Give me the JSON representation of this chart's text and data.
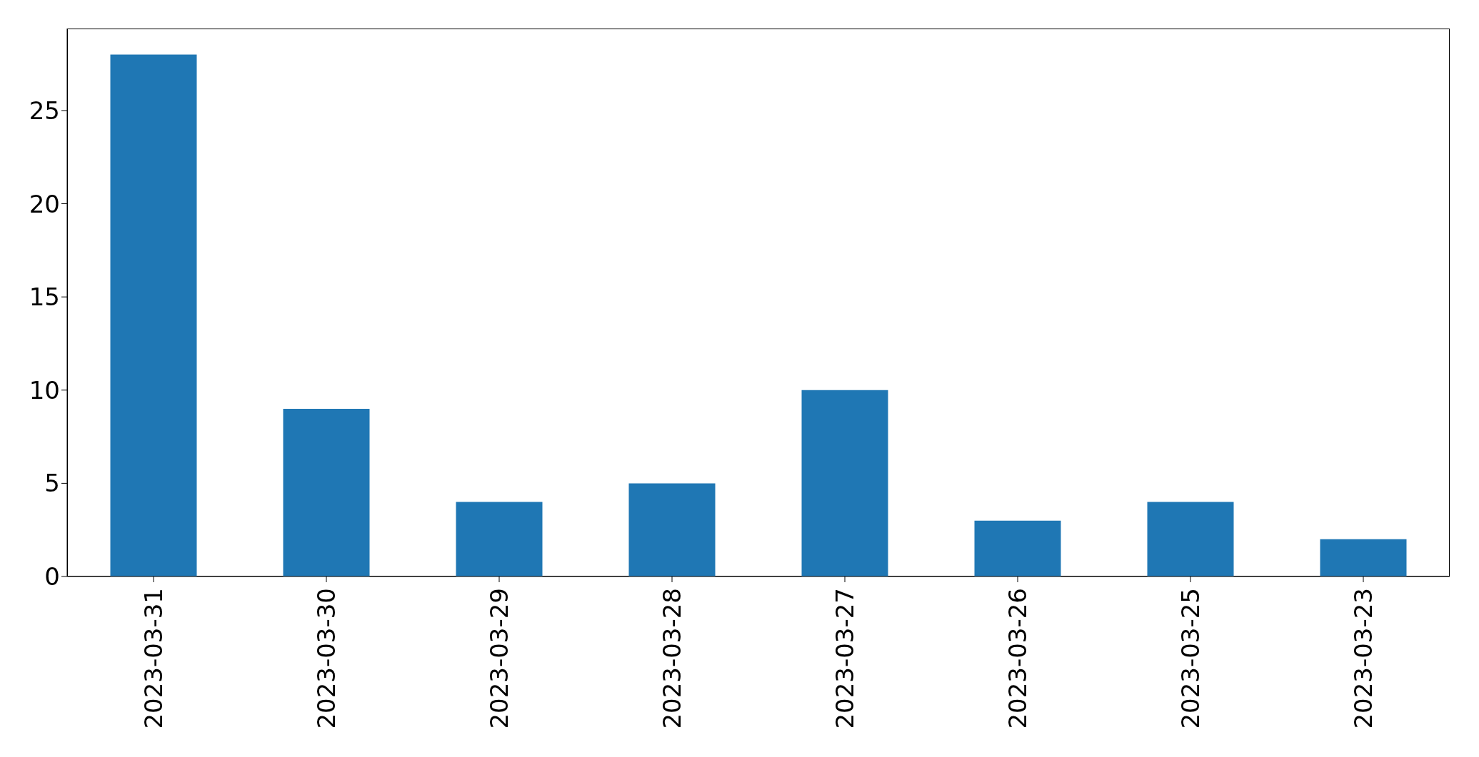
{
  "chart_data": {
    "type": "bar",
    "categories": [
      "2023-03-31",
      "2023-03-30",
      "2023-03-29",
      "2023-03-28",
      "2023-03-27",
      "2023-03-26",
      "2023-03-25",
      "2023-03-23"
    ],
    "values": [
      28,
      9,
      4,
      5,
      10,
      3,
      4,
      2
    ],
    "color": "#1f77b4",
    "ylim": [
      0,
      29.4
    ],
    "yticks": [
      0,
      5,
      10,
      15,
      20,
      25
    ],
    "grid": false
  }
}
